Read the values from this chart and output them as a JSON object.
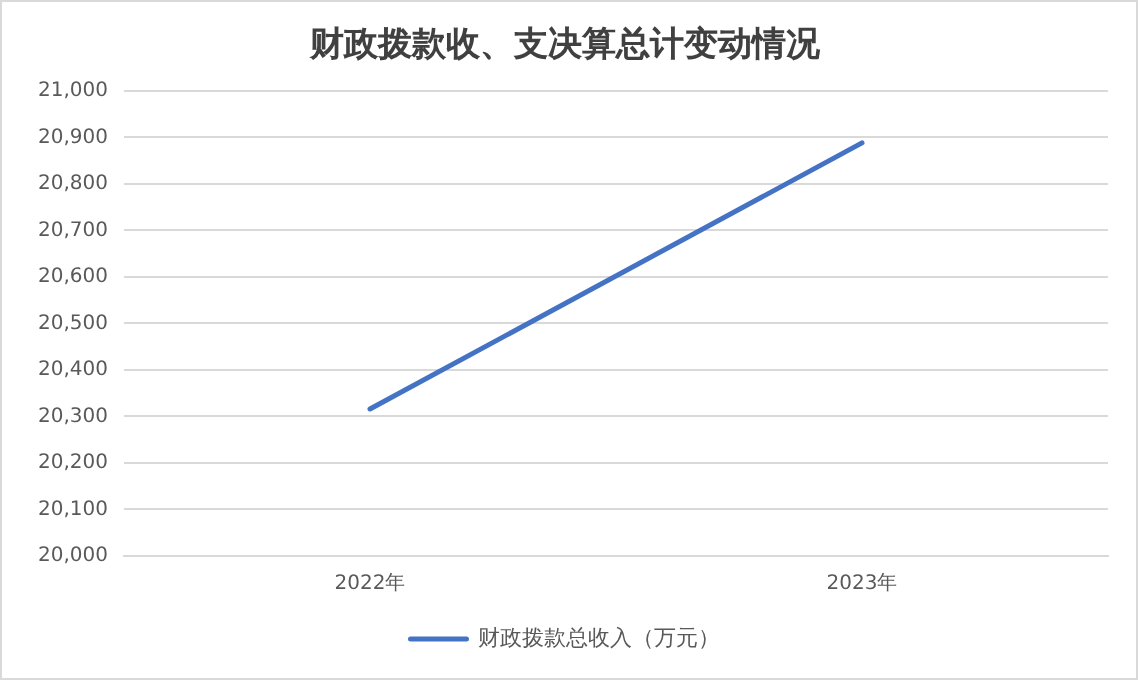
{
  "chart_data": {
    "type": "line",
    "title": "财政拨款收、支决算总计变动情况",
    "categories": [
      "2022年",
      "2023年"
    ],
    "series": [
      {
        "name": "财政拨款总收入（万元）",
        "color": "#4472c4",
        "values": [
          20316,
          20888
        ]
      }
    ],
    "ylim": [
      20000,
      21000
    ],
    "yticks": [
      {
        "value": 20000,
        "label": "20,000"
      },
      {
        "value": 20100,
        "label": "20,100"
      },
      {
        "value": 20200,
        "label": "20,200"
      },
      {
        "value": 20300,
        "label": "20,300"
      },
      {
        "value": 20400,
        "label": "20,400"
      },
      {
        "value": 20500,
        "label": "20,500"
      },
      {
        "value": 20600,
        "label": "20,600"
      },
      {
        "value": 20700,
        "label": "20,700"
      },
      {
        "value": 20800,
        "label": "20,800"
      },
      {
        "value": 20900,
        "label": "20,900"
      },
      {
        "value": 21000,
        "label": "21,000"
      }
    ],
    "grid": "y",
    "legend": "bottom",
    "marker": "none",
    "line_style": "solid"
  }
}
